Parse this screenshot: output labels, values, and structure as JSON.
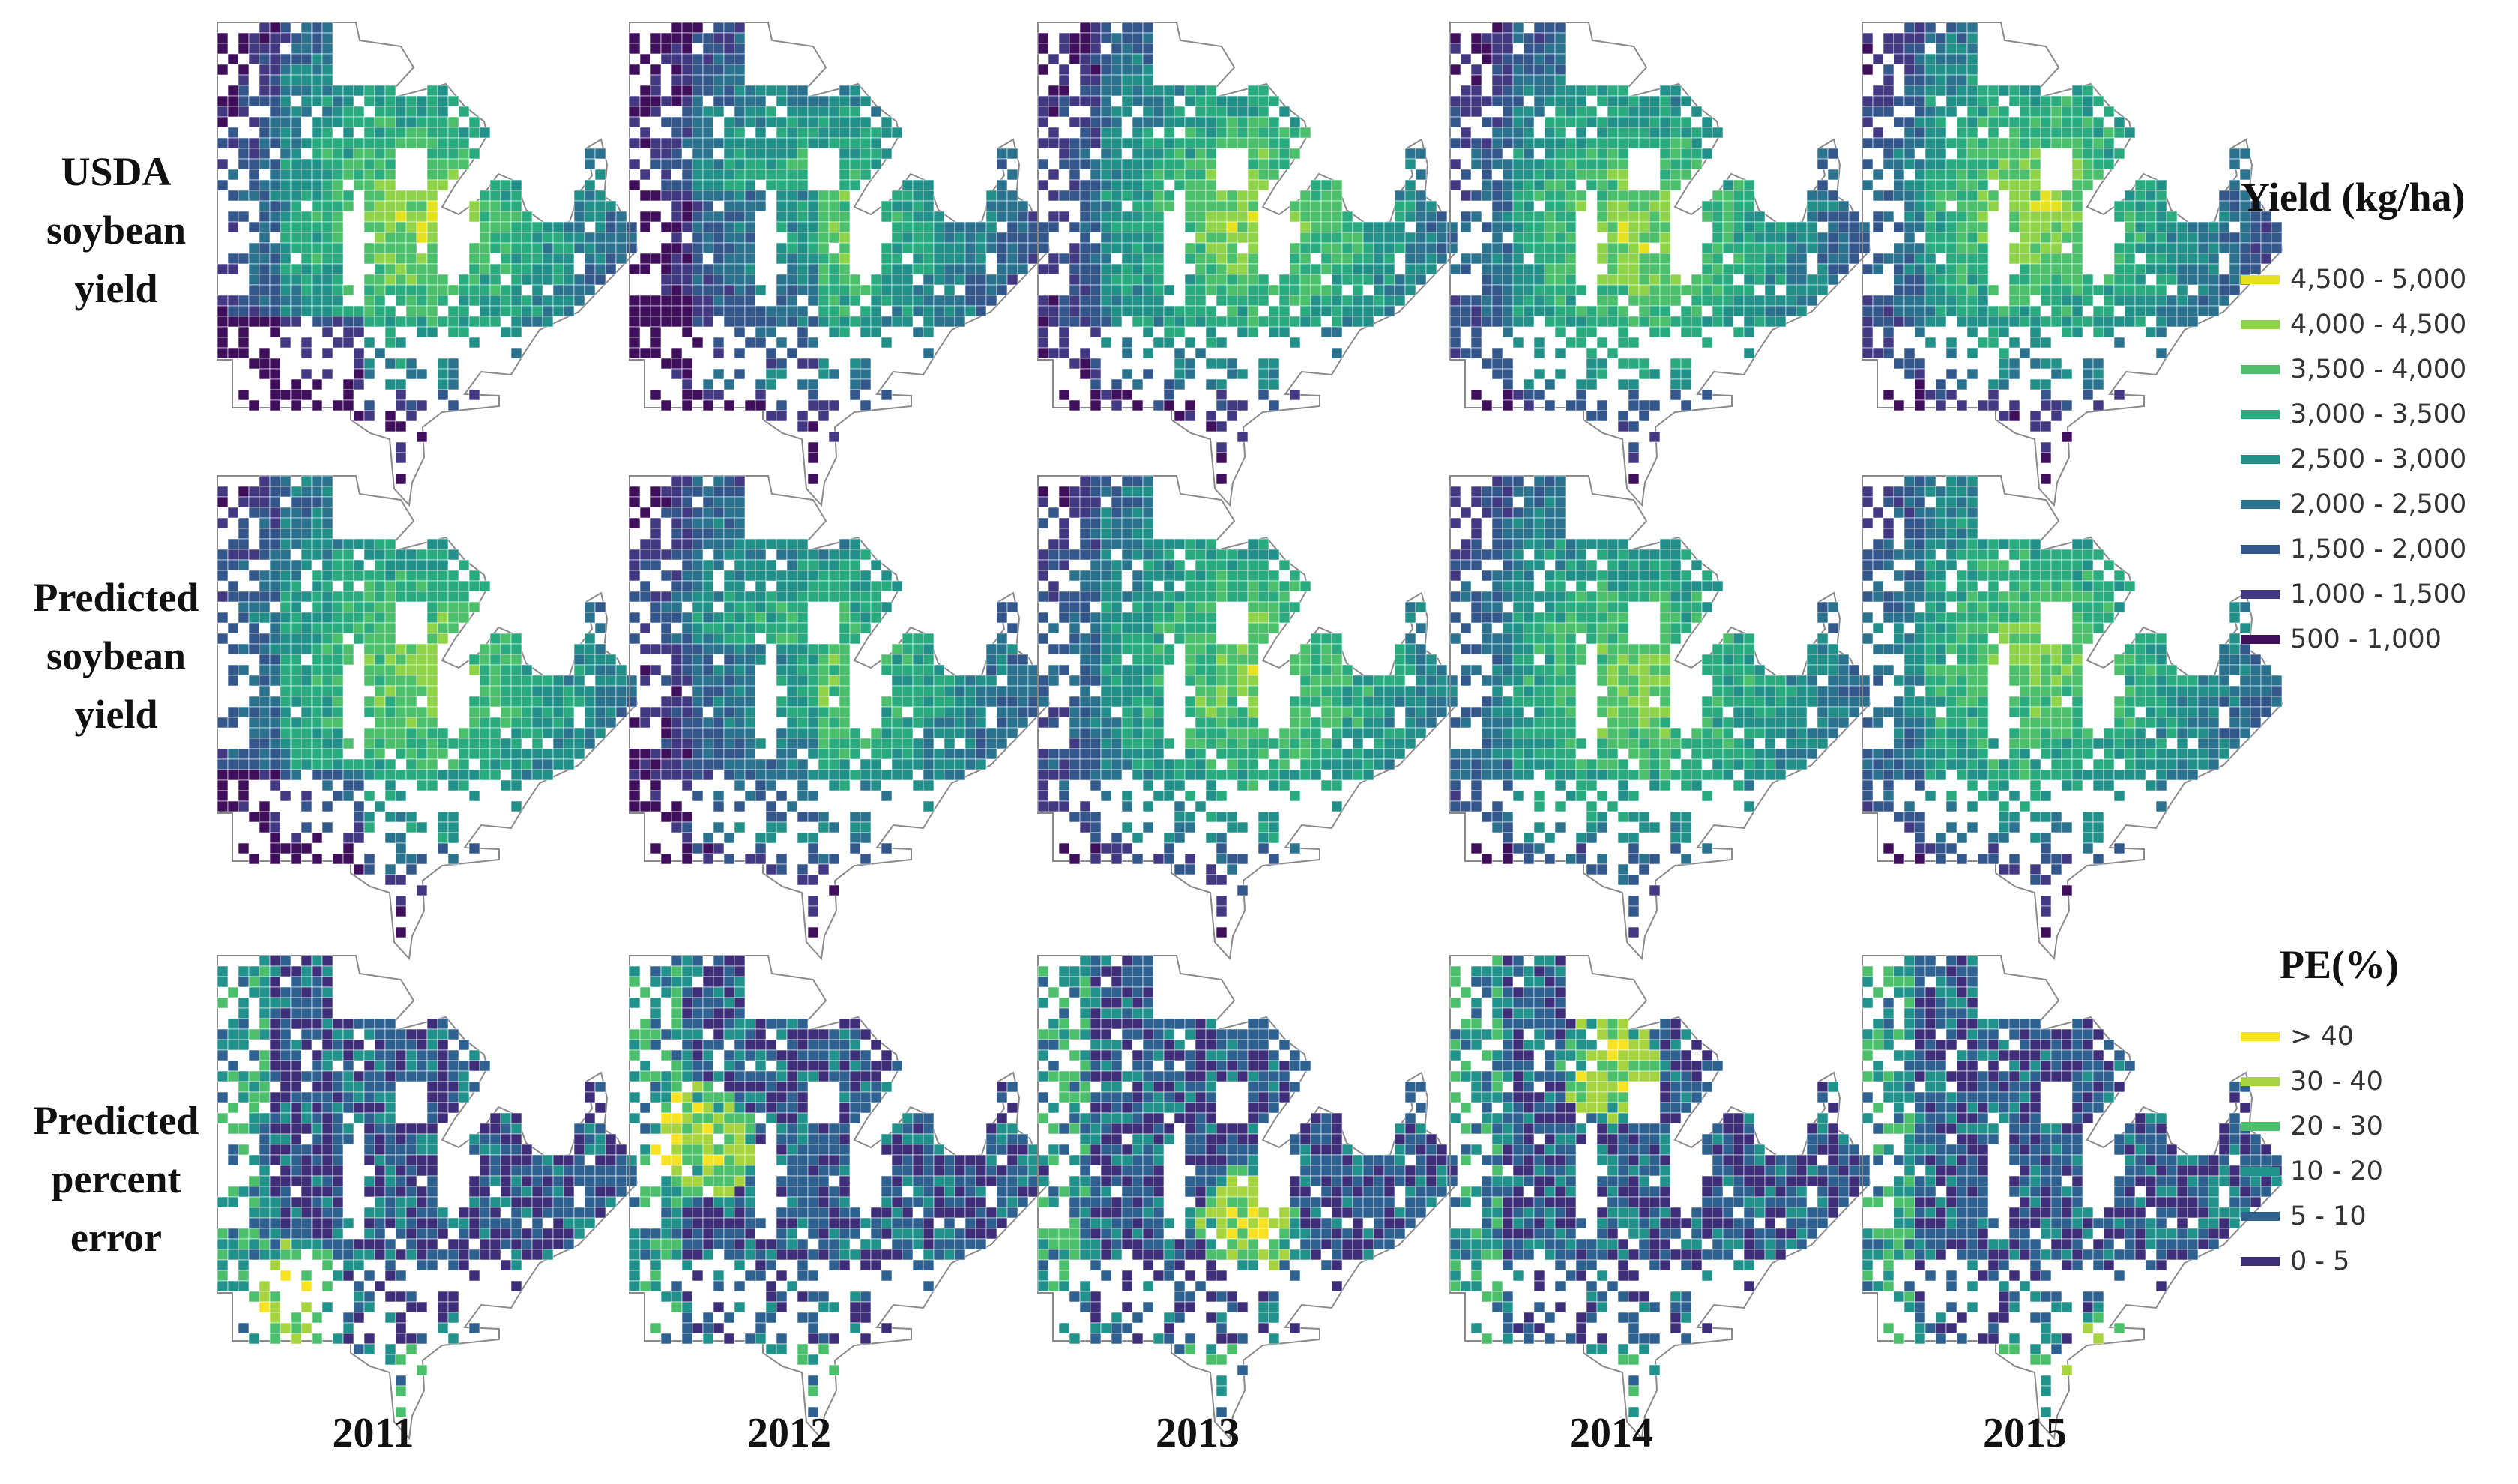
{
  "rows": [
    {
      "label_lines": [
        "USDA",
        "soybean",
        "yield"
      ],
      "legend": "yield"
    },
    {
      "label_lines": [
        "Predicted",
        "soybean",
        "yield"
      ],
      "legend": "yield"
    },
    {
      "label_lines": [
        "Predicted",
        "percent",
        "error"
      ],
      "legend": "pe"
    }
  ],
  "years": [
    "2011",
    "2012",
    "2013",
    "2014",
    "2015"
  ],
  "legends": {
    "yield": {
      "title": "Yield (kg/ha)",
      "items": [
        {
          "label": "4,500 - 5,000",
          "color": "#e6e21f"
        },
        {
          "label": "4,000 - 4,500",
          "color": "#8fd448"
        },
        {
          "label": "3,500 - 4,000",
          "color": "#4cbf6c"
        },
        {
          "label": "3,000 - 3,500",
          "color": "#2aab7f"
        },
        {
          "label": "2,500 - 3,000",
          "color": "#219088"
        },
        {
          "label": "2,000 - 2,500",
          "color": "#2b728e"
        },
        {
          "label": "1,500 - 2,000",
          "color": "#33568b"
        },
        {
          "label": "1,000 - 1,500",
          "color": "#433882"
        },
        {
          "label": "500 - 1,000",
          "color": "#3f0f5c"
        }
      ]
    },
    "pe": {
      "title": "PE(%)",
      "items": [
        {
          "label": "> 40",
          "color": "#f7e324"
        },
        {
          "label": "30 - 40",
          "color": "#a6d43e"
        },
        {
          "label": "20 - 30",
          "color": "#4cbf6c"
        },
        {
          "label": "10 - 20",
          "color": "#21918c"
        },
        {
          "label": "5 - 10",
          "color": "#2e6190"
        },
        {
          "label": "0 - 5",
          "color": "#3e2d78"
        }
      ]
    }
  },
  "map_colors": {
    "yield": [
      "#3f0f5c",
      "#433882",
      "#33568b",
      "#2b728e",
      "#219088",
      "#2aab7f",
      "#4cbf6c",
      "#8fd448",
      "#e6e21f"
    ],
    "pe": [
      "#3e2d78",
      "#2e6190",
      "#21918c",
      "#4cbf6c",
      "#a6d43e",
      "#f7e324"
    ],
    "outline": "#8a8a8a"
  }
}
